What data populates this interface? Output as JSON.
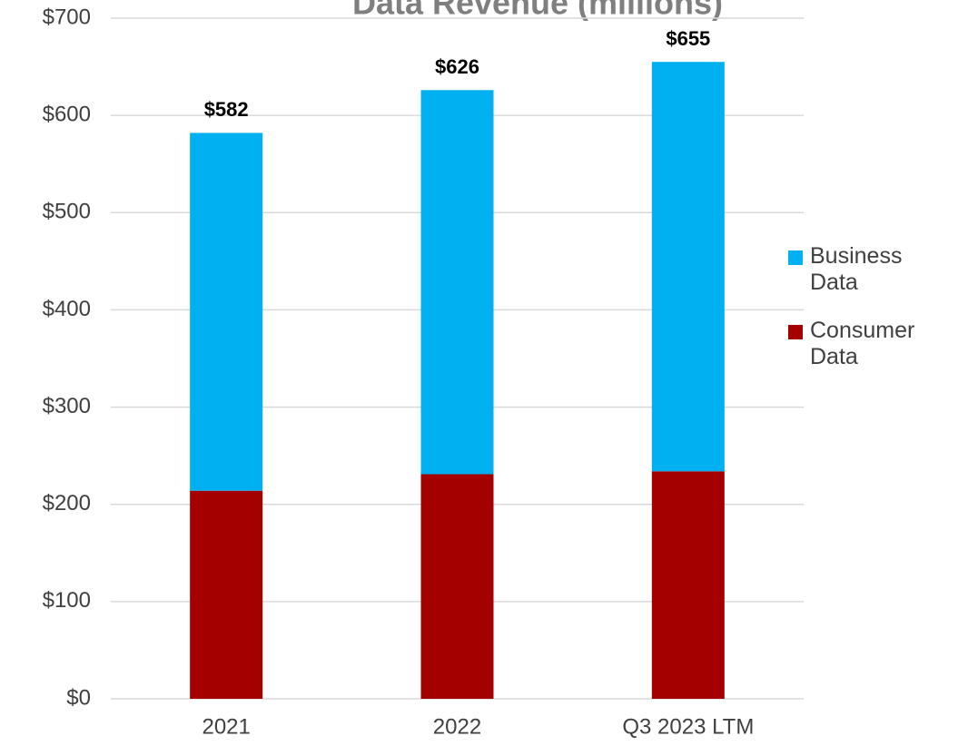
{
  "chart_data": {
    "type": "stacked_bar",
    "title": "Data Revenue (millions)",
    "categories": [
      "2021",
      "2022",
      "Q3 2023 LTM"
    ],
    "series": [
      {
        "name": "Consumer Data",
        "color": "#a50000",
        "values": [
          214,
          231,
          234
        ]
      },
      {
        "name": "Business Data",
        "color": "#00b0f0",
        "values": [
          368,
          395,
          421
        ]
      }
    ],
    "totals": [
      582,
      626,
      655
    ],
    "total_labels": [
      "$582",
      "$626",
      "$655"
    ],
    "ylim": [
      0,
      700
    ],
    "yticks": [
      {
        "value": 0,
        "label": "$0"
      },
      {
        "value": 100,
        "label": "$100"
      },
      {
        "value": 200,
        "label": "$200"
      },
      {
        "value": 300,
        "label": "$300"
      },
      {
        "value": 400,
        "label": "$400"
      },
      {
        "value": 500,
        "label": "$500"
      },
      {
        "value": 600,
        "label": "$600"
      },
      {
        "value": 700,
        "label": "$700"
      }
    ],
    "grid": true,
    "legend": "right"
  }
}
